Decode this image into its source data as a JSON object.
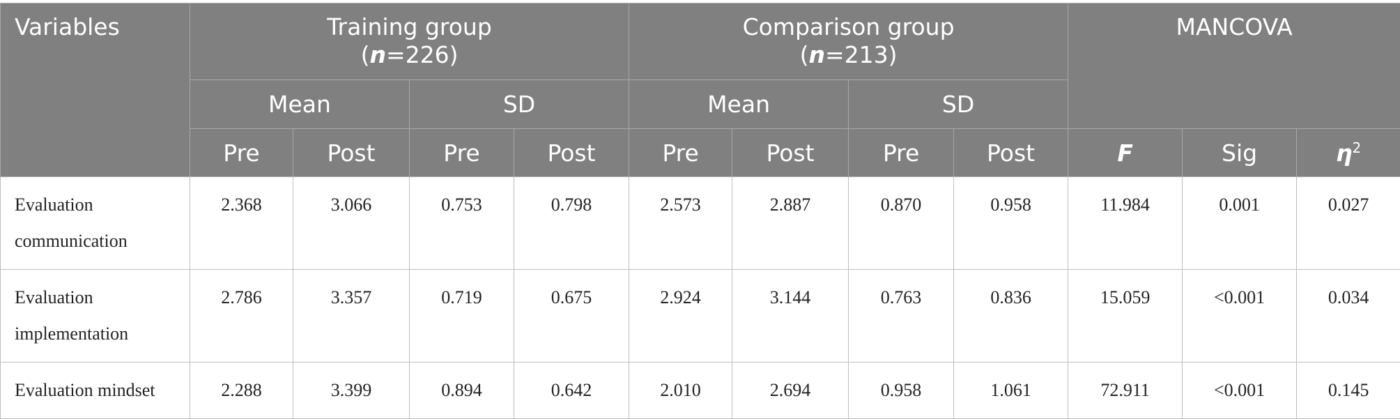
{
  "table": {
    "header": {
      "variables": "Variables",
      "groups": [
        {
          "title": "Training group",
          "n_open": "(",
          "n_symbol": "n",
          "n_rest": "=226)"
        },
        {
          "title": "Comparison group",
          "n_open": "(",
          "n_symbol": "n",
          "n_rest": "=213)"
        }
      ],
      "mancova": "MANCOVA",
      "stats": [
        "Mean",
        "SD",
        "Mean",
        "SD"
      ],
      "phases": [
        "Pre",
        "Post",
        "Pre",
        "Post",
        "Pre",
        "Post",
        "Pre",
        "Post"
      ],
      "tests": [
        "F",
        "Sig",
        "η"
      ],
      "eta_exponent": "2"
    },
    "rows": [
      [
        "Evaluation communication",
        "2.368",
        "3.066",
        "0.753",
        "0.798",
        "2.573",
        "2.887",
        "0.870",
        "0.958",
        "11.984",
        "0.001",
        "0.027"
      ],
      [
        "Evaluation implementation",
        "2.786",
        "3.357",
        "0.719",
        "0.675",
        "2.924",
        "3.144",
        "0.763",
        "0.836",
        "15.059",
        "<0.001",
        "0.034"
      ],
      [
        "Evaluation mindset",
        "2.288",
        "3.399",
        "0.894",
        "0.642",
        "2.010",
        "2.694",
        "0.958",
        "1.061",
        "72.911",
        "<0.001",
        "0.145"
      ]
    ]
  }
}
